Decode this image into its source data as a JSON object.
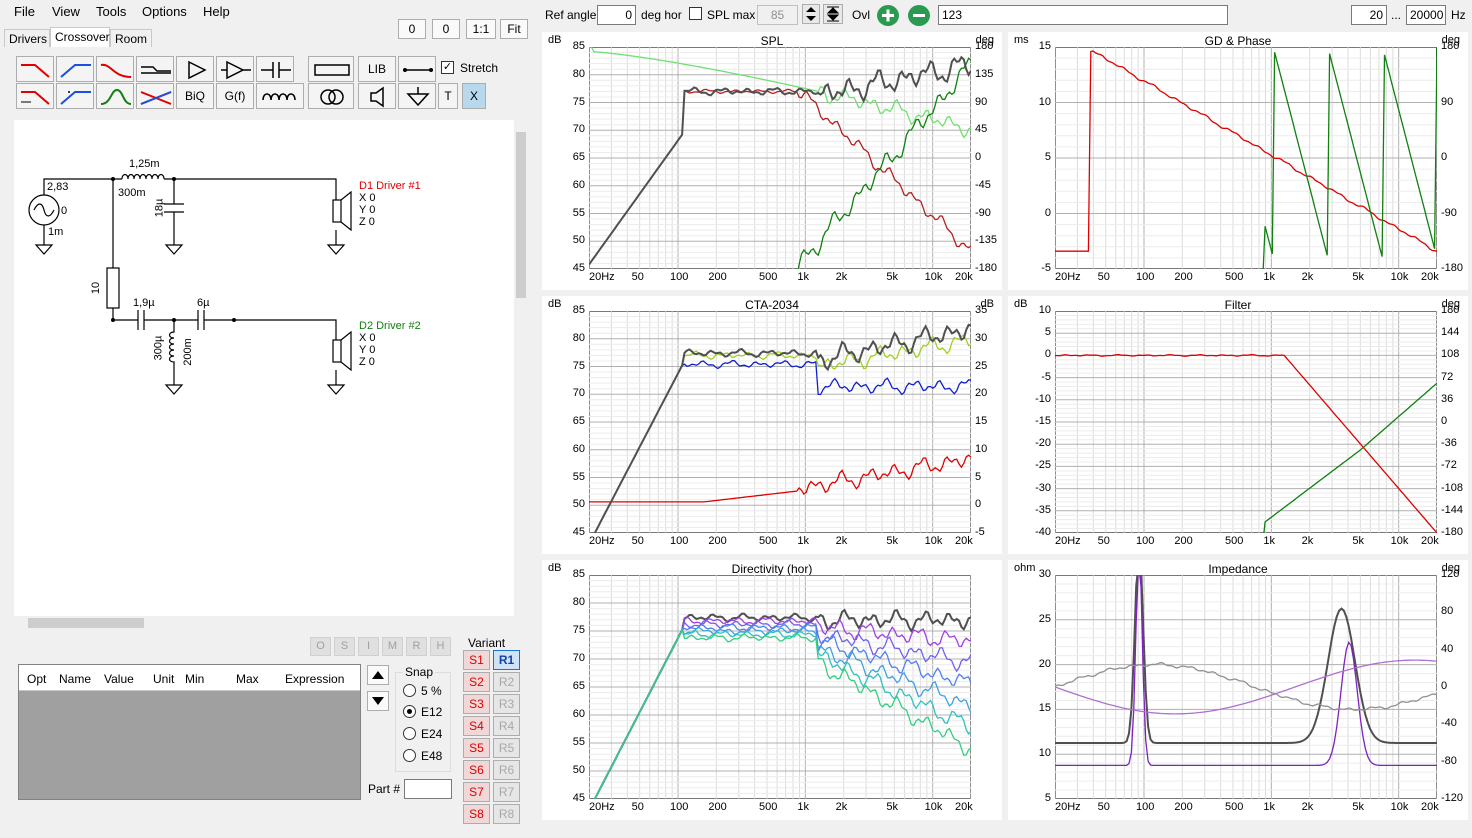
{
  "menu": [
    "File",
    "View",
    "Tools",
    "Options",
    "Help"
  ],
  "tabs": [
    "Drivers",
    "Crossover",
    "Room"
  ],
  "topright_buttons": {
    "a": "0",
    "b": "0",
    "ratio": "1:1",
    "fit": "Fit"
  },
  "toolbar": {
    "lib": "LIB",
    "biq": "BiQ",
    "gf": "G(f)",
    "t": "T",
    "x": "X",
    "stretch_label": "Stretch",
    "stretch_checked": true
  },
  "schematic": {
    "source_v": "2,83",
    "source_phase": "0",
    "source_r": "1m",
    "l1_value": "1,25m",
    "l1_r": "300m",
    "c1_value": "18µ",
    "r1_value": "10",
    "c2_value": "1,9µ",
    "c3_value": "6µ",
    "l2_value": "300µ",
    "l2_r": "200m",
    "d1": {
      "name": "D1 Driver #1",
      "x": "X 0",
      "y": "Y 0",
      "z": "Z 0",
      "color": "#e00000"
    },
    "d2": {
      "name": "D2 Driver #2",
      "x": "X 0",
      "y": "Y 0",
      "z": "Z 0",
      "color": "#108010"
    }
  },
  "osimrh": [
    "O",
    "S",
    "I",
    "M",
    "R",
    "H"
  ],
  "param_grid": {
    "columns": [
      "Opt",
      "Name",
      "Value",
      "Unit",
      "Min",
      "Max",
      "Expression"
    ]
  },
  "snap": {
    "title": "Snap",
    "options": [
      "5 %",
      "E12",
      "E24",
      "E48"
    ],
    "selected": "E12"
  },
  "part_label": "Part #",
  "variant": {
    "title": "Variant",
    "s": [
      "S1",
      "S2",
      "S3",
      "S4",
      "S5",
      "S6",
      "S7",
      "S8"
    ],
    "r": [
      "R1",
      "R2",
      "R3",
      "R4",
      "R5",
      "R6",
      "R7",
      "R8"
    ],
    "active_r": "R1"
  },
  "topbar": {
    "ref_angle_label": "Ref angle",
    "ref_angle_value": "0",
    "deg_hor": "deg hor",
    "spl_max_label": "SPL max",
    "spl_max_value": "85",
    "ovl_label": "Ovl",
    "overlay_value": "123",
    "freq_min": "20",
    "ellipsis": "...",
    "freq_max": "20000",
    "hz": "Hz"
  },
  "x_ticks": [
    "20Hz",
    "50",
    "100",
    "200",
    "500",
    "1k",
    "2k",
    "5k",
    "10k",
    "20k"
  ],
  "charts": {
    "spl": {
      "title": "SPL",
      "unit_l": "dB",
      "unit_r": "deg",
      "yl": [
        "85",
        "80",
        "75",
        "70",
        "65",
        "60",
        "55",
        "50",
        "45"
      ],
      "yr": [
        "180",
        "135",
        "90",
        "45",
        "0",
        "-45",
        "-90",
        "-135",
        "-180"
      ]
    },
    "gd": {
      "title": "GD & Phase",
      "unit_l": "ms",
      "unit_r": "deg",
      "yl": [
        "15",
        "10",
        "5",
        "0",
        "-5"
      ],
      "yr": [
        "180",
        "90",
        "0",
        "-90",
        "-180"
      ]
    },
    "cta": {
      "title": "CTA-2034",
      "unit_l": "dB",
      "unit_r": "dB",
      "yl": [
        "85",
        "80",
        "75",
        "70",
        "65",
        "60",
        "55",
        "50",
        "45"
      ],
      "yr": [
        "35",
        "30",
        "25",
        "20",
        "15",
        "10",
        "5",
        "0",
        "-5"
      ]
    },
    "filter": {
      "title": "Filter",
      "unit_l": "dB",
      "unit_r": "deg",
      "yl": [
        "10",
        "5",
        "0",
        "-5",
        "-10",
        "-15",
        "-20",
        "-25",
        "-30",
        "-35",
        "-40"
      ],
      "yr": [
        "180",
        "144",
        "108",
        "72",
        "36",
        "0",
        "-36",
        "-72",
        "-108",
        "-144",
        "-180"
      ]
    },
    "dir": {
      "title": "Directivity (hor)",
      "unit_l": "dB",
      "unit_r": "",
      "yl": [
        "85",
        "80",
        "75",
        "70",
        "65",
        "60",
        "55",
        "50",
        "45"
      ],
      "yr": []
    },
    "imp": {
      "title": "Impedance",
      "unit_l": "ohm",
      "unit_r": "deg",
      "yl": [
        "30",
        "25",
        "20",
        "15",
        "10",
        "5"
      ],
      "yr": [
        "120",
        "80",
        "40",
        "0",
        "-40",
        "-80",
        "-120"
      ]
    }
  },
  "colors": {
    "red": "#e00000",
    "green": "#108010",
    "dark": "#505050",
    "light_green": "#70e070",
    "blue": "#1020d0",
    "purple": "#8020c0",
    "yellowgreen": "#a0d020"
  }
}
